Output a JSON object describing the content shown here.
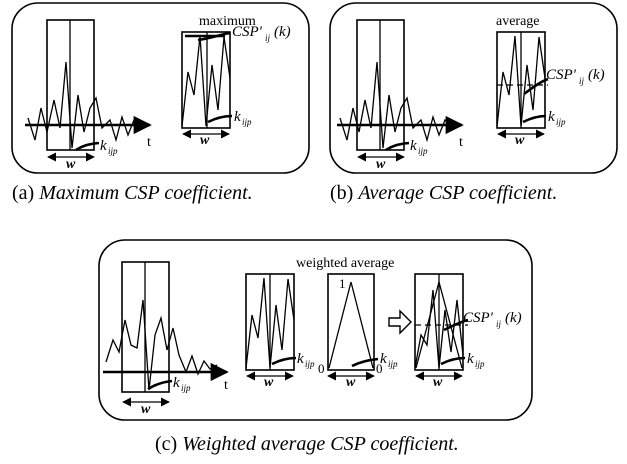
{
  "panels": {
    "a": {
      "caption_prefix": "(a) ",
      "caption_text": "Maximum CSP coefficient.",
      "method_label": "maximum",
      "csp_label": "CSP'",
      "csp_sub": "ij",
      "csp_arg": "(k)",
      "w_label": "w",
      "k_label": "k",
      "k_sub": "ijp",
      "t_label": "t"
    },
    "b": {
      "caption_prefix": "(b) ",
      "caption_text": "Average CSP coefficient.",
      "method_label": "average",
      "csp_label": "CSP'",
      "csp_sub": "ij",
      "csp_arg": "(k)",
      "w_label": "w",
      "k_label": "k",
      "k_sub": "ijp",
      "t_label": "t"
    },
    "c": {
      "caption_prefix": "(c) ",
      "caption_text": "Weighted average CSP coefficient.",
      "method_label": "weighted average",
      "csp_label": "CSP'",
      "csp_sub": "ij",
      "csp_arg": "(k)",
      "w_label": "w",
      "k_label": "k",
      "k_sub": "ijp",
      "t_label": "t",
      "weight_top": "1",
      "weight_zero_left": "0",
      "weight_zero_right": "0"
    }
  }
}
